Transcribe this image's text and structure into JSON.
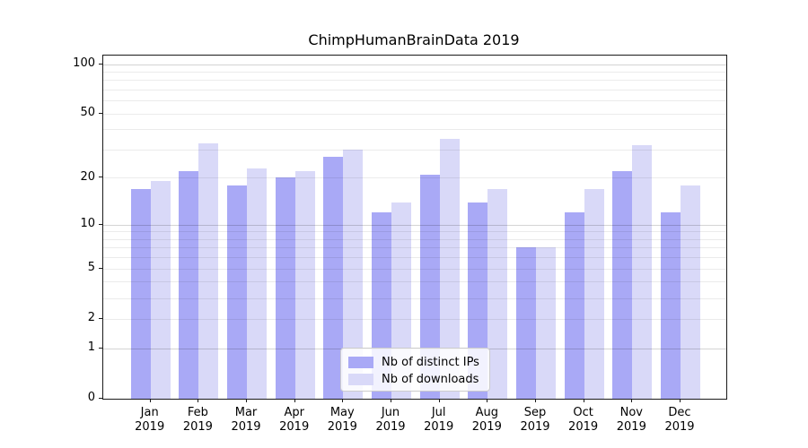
{
  "title": "ChimpHumanBrainData 2019",
  "chart_data": {
    "type": "bar",
    "title": "ChimpHumanBrainData 2019",
    "categories": [
      "Jan",
      "Feb",
      "Mar",
      "Apr",
      "May",
      "Jun",
      "Jul",
      "Aug",
      "Sep",
      "Oct",
      "Nov",
      "Dec"
    ],
    "category_year": "2019",
    "series": [
      {
        "name": "Nb of distinct IPs",
        "color": "#a9a9f6",
        "values": [
          17,
          22,
          18,
          20,
          27,
          12,
          21,
          14,
          7,
          12,
          22,
          12
        ]
      },
      {
        "name": "Nb of downloads",
        "color": "#d9d9f8",
        "values": [
          19,
          33,
          23,
          22,
          30,
          14,
          35,
          17,
          7,
          17,
          32,
          18
        ]
      }
    ],
    "xlabel": "",
    "ylabel": "",
    "yscale": "log1p",
    "ylim": [
      0,
      100
    ],
    "y_tick_labels": [
      "0",
      "1",
      "2",
      "5",
      "10",
      "20",
      "50",
      "100"
    ],
    "y_tick_values": [
      0,
      1,
      2,
      5,
      10,
      20,
      50,
      100
    ],
    "gridline_values": [
      1,
      2,
      3,
      4,
      5,
      6,
      7,
      8,
      9,
      10,
      20,
      30,
      40,
      50,
      60,
      70,
      80,
      90,
      100
    ],
    "major_gridline_values": [
      1,
      10,
      100
    ],
    "grid": true,
    "legend_position": "lower-center"
  },
  "colors": {
    "spine": "#1a1a1a",
    "text": "#000000",
    "minor_grid": "rgba(0,0,0,0.08)",
    "major_grid": "rgba(0,0,0,0.17)",
    "legend_border": "#cccccc"
  }
}
